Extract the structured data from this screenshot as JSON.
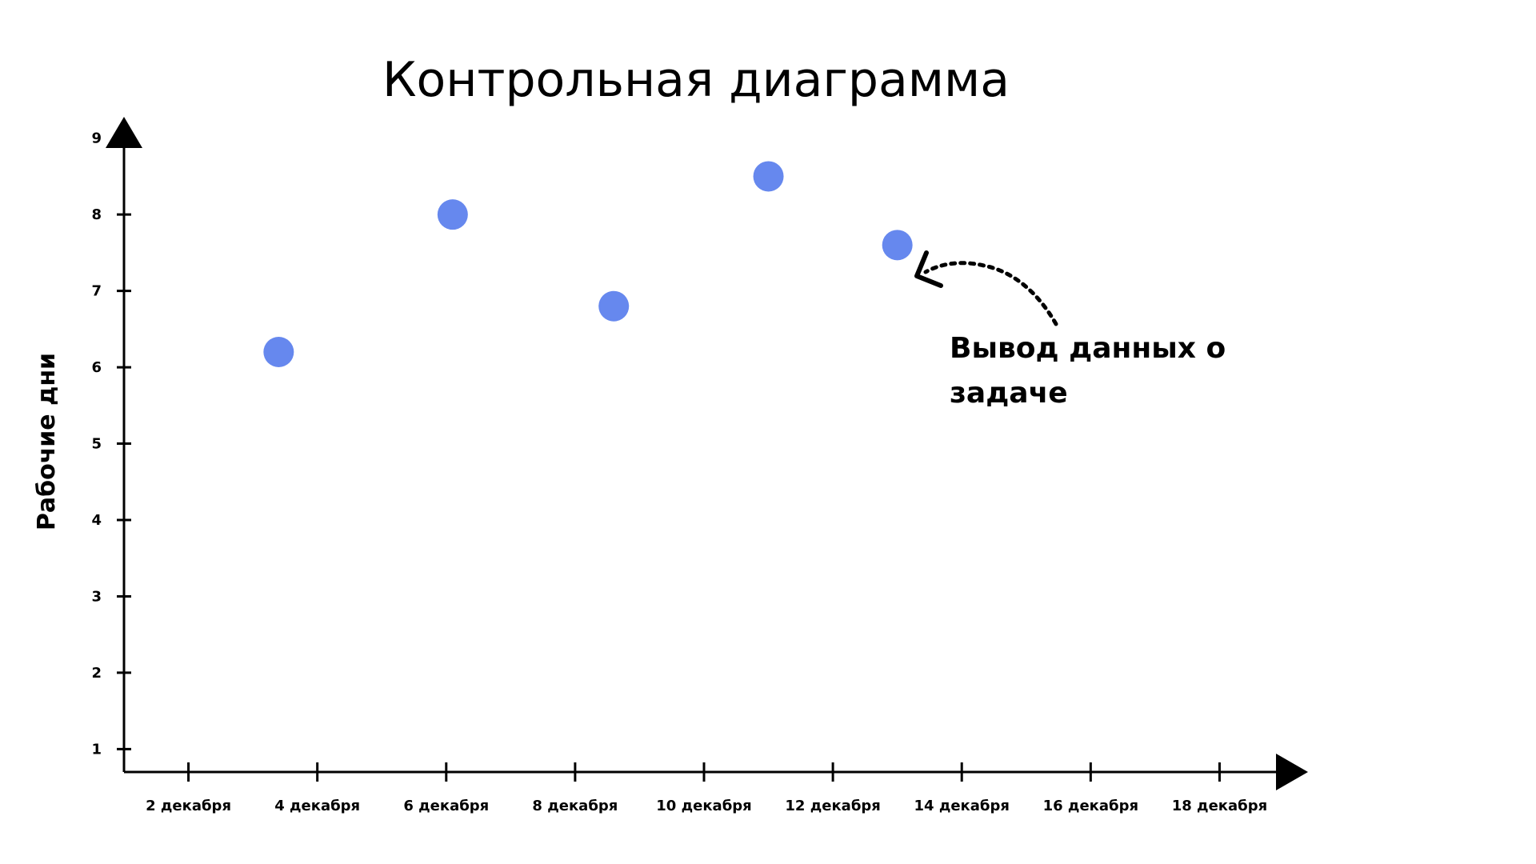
{
  "chart_data": {
    "type": "scatter",
    "title": "Контрольная диаграмма",
    "xlabel": "",
    "ylabel": "Рабочие дни",
    "x_ticks": [
      "2 декабря",
      "4 декабря",
      "6 декабря",
      "8 декабря",
      "10 декабря",
      "12 декабря",
      "14 декабря",
      "16 декабря",
      "18 декабря"
    ],
    "y_ticks": [
      "1",
      "2",
      "3",
      "4",
      "5",
      "6",
      "7",
      "8",
      "9"
    ],
    "xlim": [
      1,
      19
    ],
    "ylim": [
      0.7,
      9.5
    ],
    "series": [
      {
        "color": "#6688EE",
        "points": [
          {
            "x": 3.4,
            "y": 6.2
          },
          {
            "x": 6.1,
            "y": 8.0
          },
          {
            "x": 8.6,
            "y": 6.8
          },
          {
            "x": 11.0,
            "y": 8.5
          },
          {
            "x": 13.0,
            "y": 7.6
          }
        ]
      }
    ],
    "annotation": {
      "text_line1": "Вывод данных о",
      "text_line2": "задаче"
    },
    "grid": false,
    "axis_color": "#000000"
  }
}
